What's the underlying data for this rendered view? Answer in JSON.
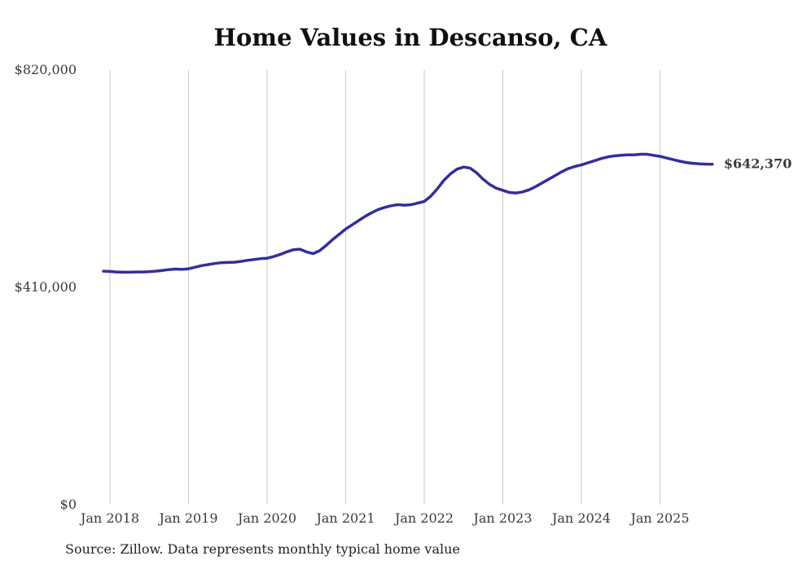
{
  "chart_data": {
    "type": "line",
    "title": "Home Values in Descanso, CA",
    "xlabel": "",
    "ylabel": "",
    "ylim": [
      0,
      820000
    ],
    "grid": "vertical-year-lines-only",
    "legend": "none",
    "y_ticks": [
      {
        "label": "$0",
        "value": 0
      },
      {
        "label": "$410,000",
        "value": 410000
      },
      {
        "label": "$820,000",
        "value": 820000
      }
    ],
    "x_ticks": [
      "Jan 2018",
      "Jan 2019",
      "Jan 2020",
      "Jan 2021",
      "Jan 2022",
      "Jan 2023",
      "Jan 2024",
      "Jan 2025"
    ],
    "series_name": "Typical home value",
    "series_start_month": "2017-12",
    "frequency": "monthly",
    "values": [
      440500,
      440000,
      439000,
      438500,
      438500,
      439000,
      439000,
      439500,
      440500,
      442000,
      443500,
      444500,
      444000,
      445000,
      448000,
      451000,
      453000,
      455000,
      456500,
      457000,
      457500,
      459000,
      461000,
      462500,
      464000,
      465000,
      468000,
      472000,
      477000,
      481000,
      482000,
      477000,
      473500,
      479000,
      489000,
      500000,
      510000,
      520000,
      528000,
      536000,
      544000,
      551000,
      557000,
      561000,
      564000,
      566000,
      565000,
      566000,
      569000,
      572000,
      582000,
      596000,
      612000,
      624000,
      633000,
      637000,
      635000,
      626000,
      614000,
      604000,
      597000,
      593000,
      589000,
      588000,
      590000,
      594000,
      600000,
      607000,
      614000,
      621000,
      628000,
      634000,
      638000,
      641000,
      645000,
      649000,
      653000,
      656000,
      658000,
      659000,
      660000,
      660000,
      661000,
      661000,
      659000,
      657000,
      654000,
      651000,
      648000,
      645500,
      644000,
      643000,
      642500,
      642370
    ],
    "latest_value": 642370,
    "end_label": "$642,370",
    "source": "Source: Zillow. Data represents monthly typical home value",
    "colors": {
      "line": "#332E9E",
      "gridline": "#C9C9C9",
      "axis_text": "#3A3A3A",
      "title_text": "#101010",
      "source_text": "#222222"
    }
  }
}
